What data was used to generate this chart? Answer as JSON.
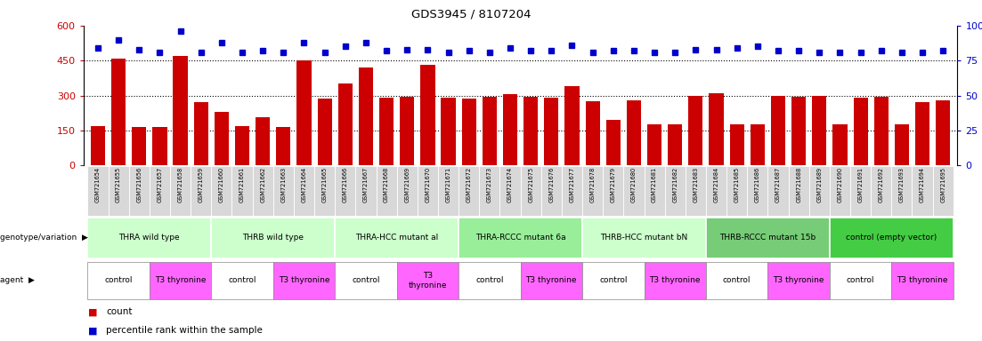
{
  "title": "GDS3945 / 8107204",
  "samples": [
    "GSM721654",
    "GSM721655",
    "GSM721656",
    "GSM721657",
    "GSM721658",
    "GSM721659",
    "GSM721660",
    "GSM721661",
    "GSM721662",
    "GSM721663",
    "GSM721664",
    "GSM721665",
    "GSM721666",
    "GSM721667",
    "GSM721668",
    "GSM721669",
    "GSM721670",
    "GSM721671",
    "GSM721672",
    "GSM721673",
    "GSM721674",
    "GSM721675",
    "GSM721676",
    "GSM721677",
    "GSM721678",
    "GSM721679",
    "GSM721680",
    "GSM721681",
    "GSM721682",
    "GSM721683",
    "GSM721684",
    "GSM721685",
    "GSM721686",
    "GSM721687",
    "GSM721688",
    "GSM721689",
    "GSM721690",
    "GSM721691",
    "GSM721692",
    "GSM721693",
    "GSM721694",
    "GSM721695"
  ],
  "counts": [
    170,
    460,
    165,
    165,
    470,
    270,
    230,
    170,
    205,
    165,
    450,
    285,
    350,
    420,
    290,
    295,
    430,
    290,
    285,
    295,
    305,
    295,
    290,
    340,
    275,
    195,
    280,
    175,
    175,
    300,
    310,
    175,
    175,
    300,
    295,
    300,
    175,
    290,
    295,
    175,
    270,
    280
  ],
  "percentiles": [
    84,
    90,
    83,
    81,
    96,
    81,
    88,
    81,
    82,
    81,
    88,
    81,
    85,
    88,
    82,
    83,
    83,
    81,
    82,
    81,
    84,
    82,
    82,
    86,
    81,
    82,
    82,
    81,
    81,
    83,
    83,
    84,
    85,
    82,
    82,
    81,
    81,
    81,
    82,
    81,
    81,
    82
  ],
  "bar_color": "#cc0000",
  "dot_color": "#0000cc",
  "ylim_left": [
    0,
    600
  ],
  "ylim_right": [
    0,
    100
  ],
  "yticks_left": [
    0,
    150,
    300,
    450,
    600
  ],
  "yticks_right": [
    0,
    25,
    50,
    75,
    100
  ],
  "genotype_groups": [
    {
      "label": "THRA wild type",
      "start": 0,
      "end": 6,
      "color": "#ccffcc"
    },
    {
      "label": "THRB wild type",
      "start": 6,
      "end": 12,
      "color": "#ccffcc"
    },
    {
      "label": "THRA-HCC mutant al",
      "start": 12,
      "end": 18,
      "color": "#ccffcc"
    },
    {
      "label": "THRA-RCCC mutant 6a",
      "start": 18,
      "end": 24,
      "color": "#99ee99"
    },
    {
      "label": "THRB-HCC mutant bN",
      "start": 24,
      "end": 30,
      "color": "#ccffcc"
    },
    {
      "label": "THRB-RCCC mutant 15b",
      "start": 30,
      "end": 36,
      "color": "#77cc77"
    },
    {
      "label": "control (empty vector)",
      "start": 36,
      "end": 42,
      "color": "#44cc44"
    }
  ],
  "agent_groups": [
    {
      "label": "control",
      "start": 0,
      "end": 3,
      "color": "#ffffff"
    },
    {
      "label": "T3 thyronine",
      "start": 3,
      "end": 6,
      "color": "#ff66ff"
    },
    {
      "label": "control",
      "start": 6,
      "end": 9,
      "color": "#ffffff"
    },
    {
      "label": "T3 thyronine",
      "start": 9,
      "end": 12,
      "color": "#ff66ff"
    },
    {
      "label": "control",
      "start": 12,
      "end": 15,
      "color": "#ffffff"
    },
    {
      "label": "T3\nthyronine",
      "start": 15,
      "end": 18,
      "color": "#ff66ff"
    },
    {
      "label": "control",
      "start": 18,
      "end": 21,
      "color": "#ffffff"
    },
    {
      "label": "T3 thyronine",
      "start": 21,
      "end": 24,
      "color": "#ff66ff"
    },
    {
      "label": "control",
      "start": 24,
      "end": 27,
      "color": "#ffffff"
    },
    {
      "label": "T3 thyronine",
      "start": 27,
      "end": 30,
      "color": "#ff66ff"
    },
    {
      "label": "control",
      "start": 30,
      "end": 33,
      "color": "#ffffff"
    },
    {
      "label": "T3 thyronine",
      "start": 33,
      "end": 36,
      "color": "#ff66ff"
    },
    {
      "label": "control",
      "start": 36,
      "end": 39,
      "color": "#ffffff"
    },
    {
      "label": "T3 thyronine",
      "start": 39,
      "end": 42,
      "color": "#ff66ff"
    }
  ]
}
